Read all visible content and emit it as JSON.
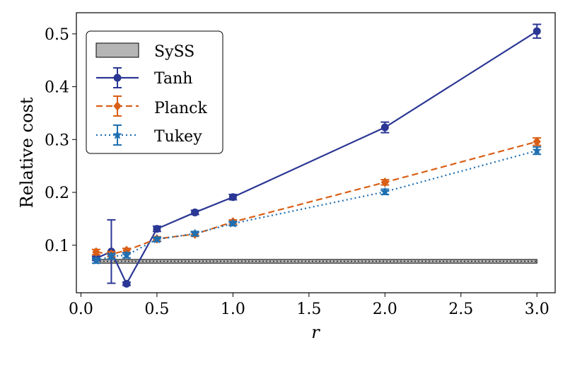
{
  "chart_data": {
    "type": "line",
    "xlabel": "r",
    "ylabel": "Relative cost",
    "xlim": [
      -0.03,
      3.12
    ],
    "ylim": [
      0.01,
      0.54
    ],
    "xticks": [
      0.0,
      0.5,
      1.0,
      1.5,
      2.0,
      2.5,
      3.0
    ],
    "xtick_labels": [
      "0.0",
      "0.5",
      "1.0",
      "1.5",
      "2.0",
      "2.5",
      "3.0"
    ],
    "yticks": [
      0.1,
      0.2,
      0.3,
      0.4,
      0.5
    ],
    "ytick_labels": [
      "0.1",
      "0.2",
      "0.3",
      "0.4",
      "0.5"
    ],
    "legend_position": "top-left",
    "band": {
      "name": "SySS",
      "x_range": [
        0.1,
        3.0
      ],
      "y_range": [
        0.066,
        0.073
      ],
      "color": "#b5b5b5"
    },
    "series": [
      {
        "name": "Tanh",
        "color": "#2b3794",
        "linestyle": "solid",
        "marker": "circle",
        "x": [
          0.1,
          0.2,
          0.3,
          0.5,
          0.75,
          1.0,
          2.0,
          3.0
        ],
        "y": [
          0.075,
          0.088,
          0.027,
          0.131,
          0.162,
          0.191,
          0.323,
          0.505
        ],
        "err": [
          0.004,
          0.06,
          0.003,
          0.005,
          0.004,
          0.005,
          0.01,
          0.013
        ]
      },
      {
        "name": "Planck",
        "color": "#d95f16",
        "linestyle": "dashed",
        "marker": "diamond",
        "x": [
          0.1,
          0.2,
          0.3,
          0.5,
          0.75,
          1.0,
          2.0,
          3.0
        ],
        "y": [
          0.087,
          0.083,
          0.09,
          0.112,
          0.121,
          0.144,
          0.219,
          0.296
        ],
        "err": [
          0.005,
          0.005,
          0.004,
          0.004,
          0.004,
          0.004,
          0.005,
          0.007
        ]
      },
      {
        "name": "Tukey",
        "color": "#1f6fb1",
        "linestyle": "dotted",
        "marker": "star",
        "x": [
          0.1,
          0.2,
          0.3,
          0.5,
          0.75,
          1.0,
          2.0,
          3.0
        ],
        "y": [
          0.071,
          0.079,
          0.081,
          0.111,
          0.122,
          0.141,
          0.201,
          0.279
        ],
        "err": [
          0.005,
          0.005,
          0.005,
          0.004,
          0.004,
          0.004,
          0.005,
          0.007
        ]
      }
    ]
  }
}
